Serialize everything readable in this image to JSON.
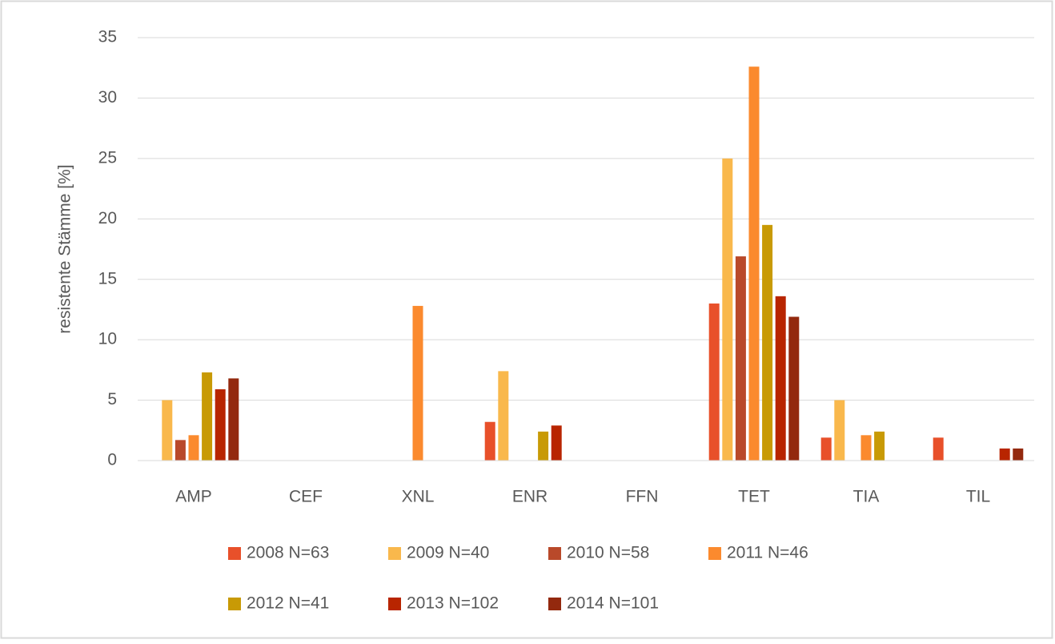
{
  "chart_data": {
    "type": "bar",
    "y_label": "resistente Stämme [%]",
    "categories": [
      "AMP",
      "CEF",
      "XNL",
      "ENR",
      "FFN",
      "TET",
      "TIA",
      "TIL"
    ],
    "series": [
      {
        "name": "2008 N=63",
        "color": "#e8502a",
        "values": [
          0,
          0,
          0,
          3.2,
          0,
          13,
          1.9,
          1.9
        ]
      },
      {
        "name": "2009 N=40",
        "color": "#f9b84c",
        "values": [
          5,
          0,
          0,
          7.4,
          0,
          25,
          5,
          0
        ]
      },
      {
        "name": "2010 N=58",
        "color": "#b9492a",
        "values": [
          1.7,
          0,
          0,
          0,
          0,
          16.9,
          0,
          0
        ]
      },
      {
        "name": "2011 N=46",
        "color": "#fb8a2e",
        "values": [
          2.1,
          0,
          12.8,
          0,
          0,
          32.6,
          2.1,
          0
        ]
      },
      {
        "name": "2012 N=41",
        "color": "#c89a05",
        "values": [
          7.3,
          0,
          0,
          2.4,
          0,
          19.5,
          2.4,
          0
        ]
      },
      {
        "name": "2013 N=102",
        "color": "#b82500",
        "values": [
          5.9,
          0,
          0,
          2.9,
          0,
          13.6,
          0,
          1
        ]
      },
      {
        "name": "2014 N=101",
        "color": "#93290e",
        "values": [
          6.8,
          0,
          0,
          0,
          0,
          11.9,
          0,
          1
        ]
      }
    ],
    "ylim": [
      0,
      35
    ],
    "yticks": [
      0,
      5,
      10,
      15,
      20,
      25,
      30,
      35
    ],
    "grid": true,
    "legend": "bottom"
  }
}
